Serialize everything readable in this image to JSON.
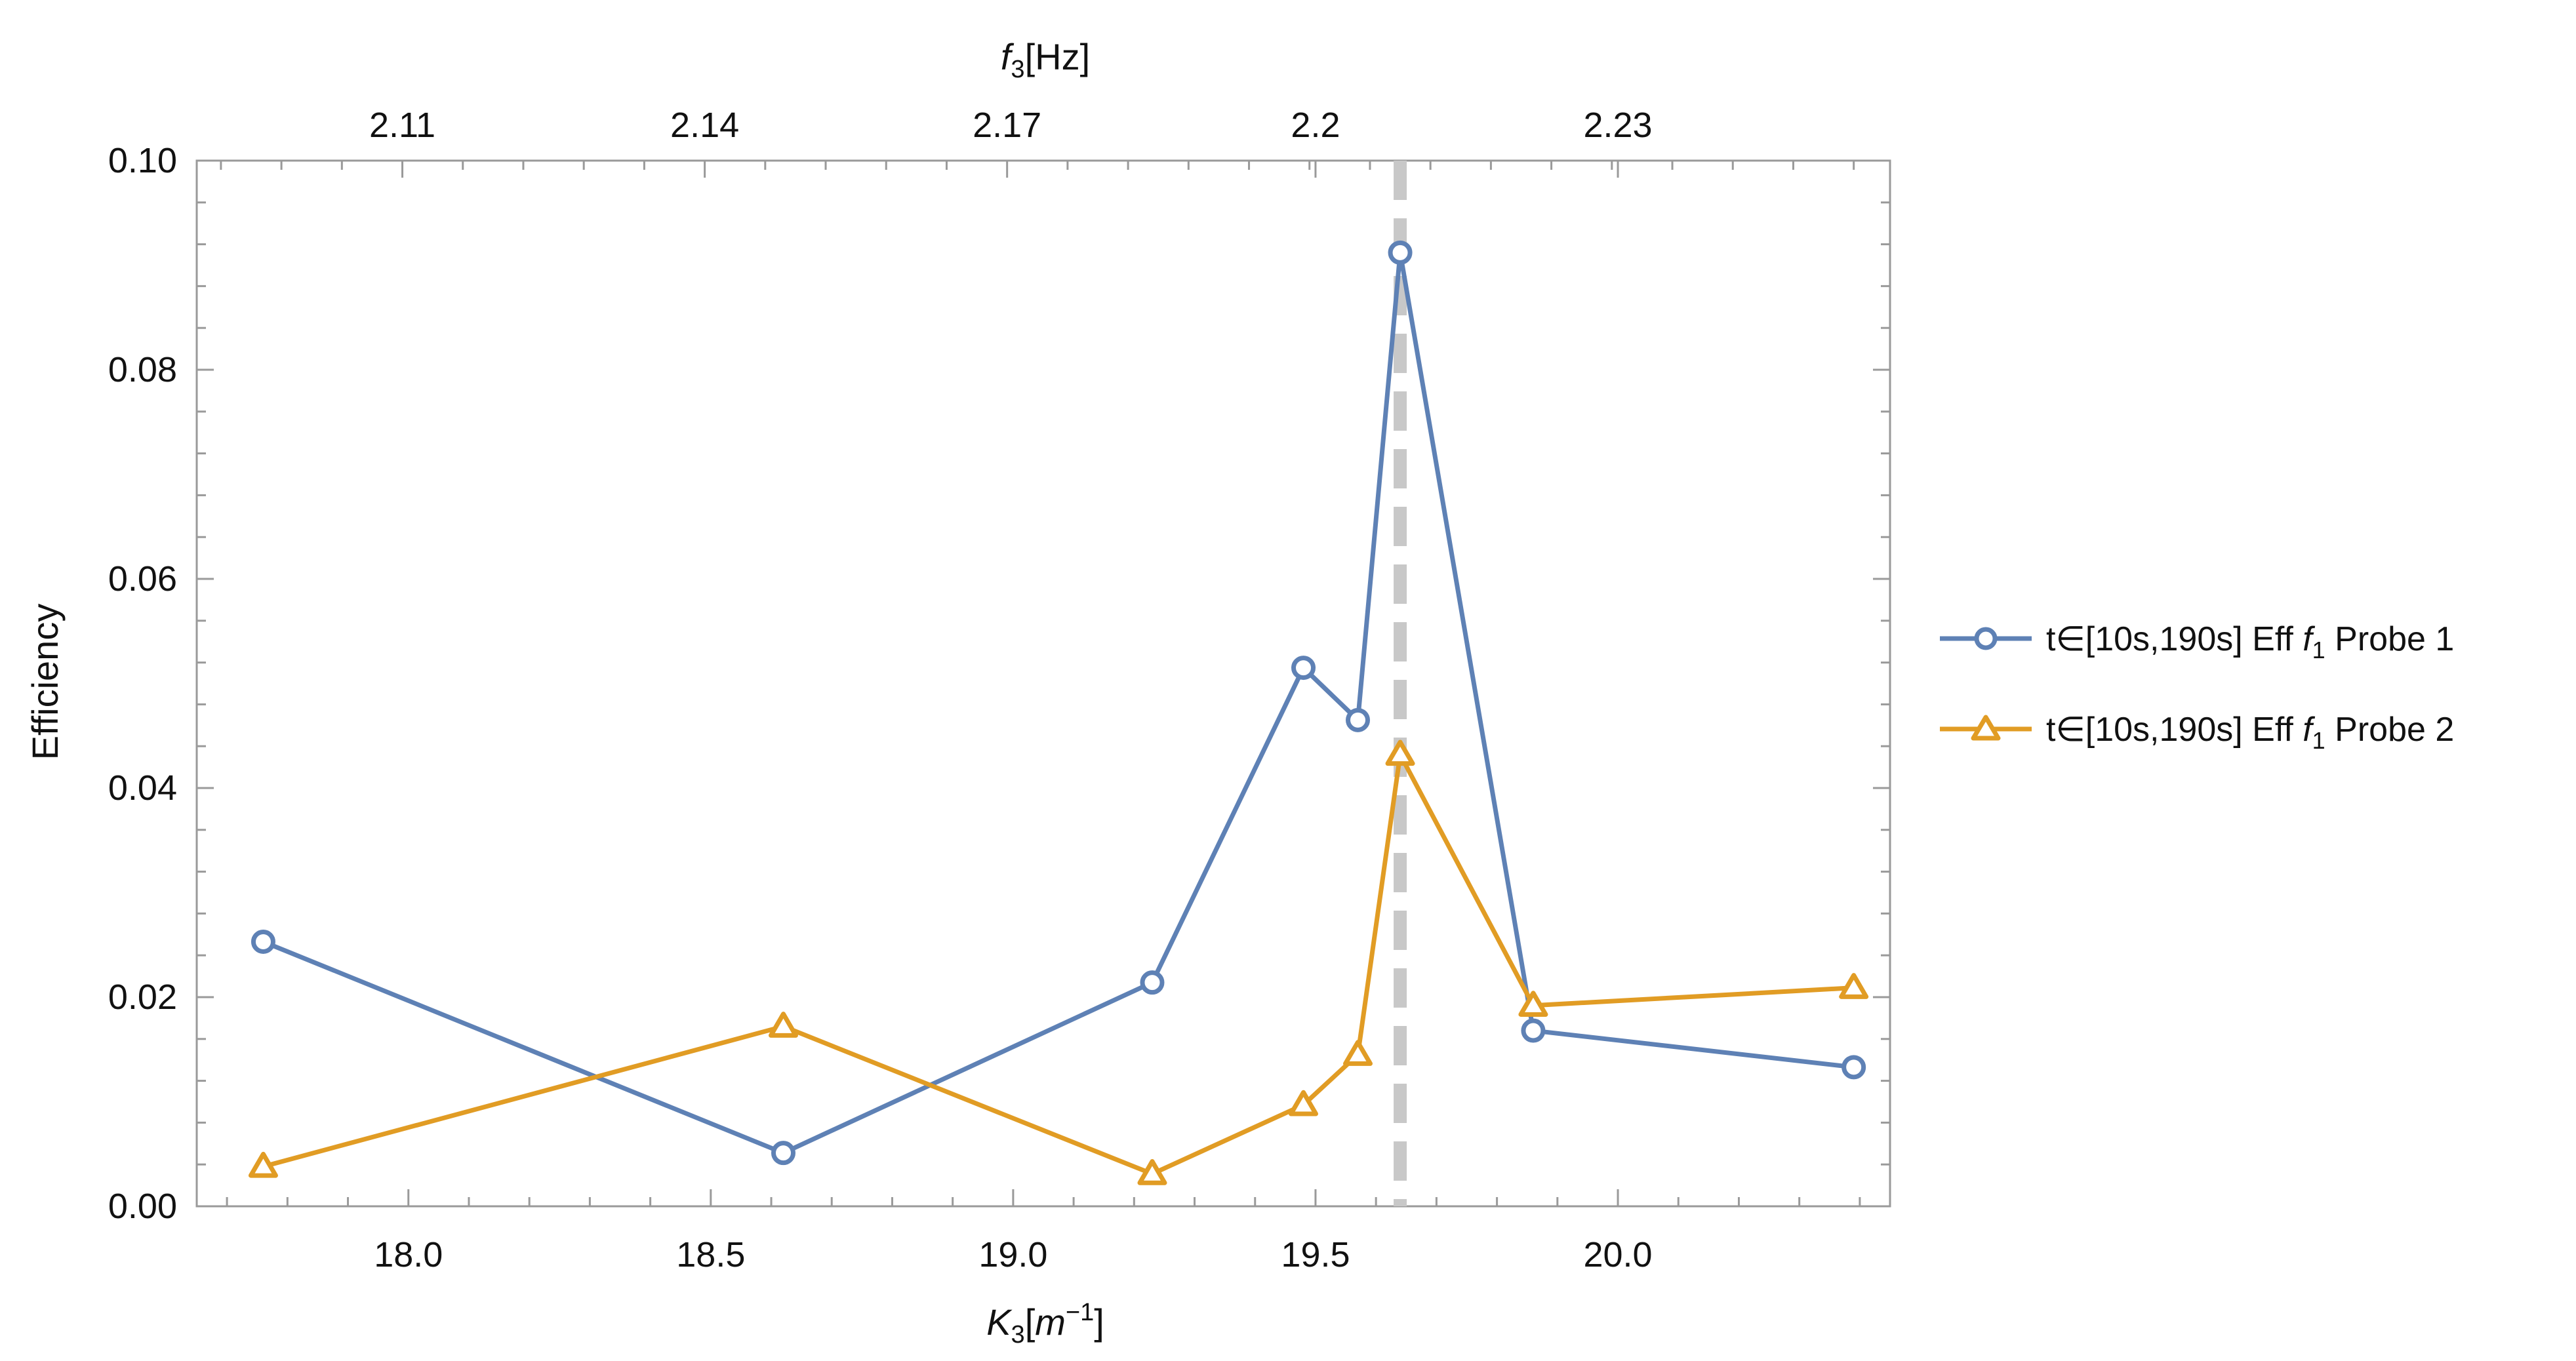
{
  "chart_data": {
    "type": "line",
    "title": "",
    "xlabel": {
      "main": "K",
      "sub": "3",
      "open": "[",
      "unit": "m",
      "sup": "−1",
      "close": "]"
    },
    "ylabel": "Efficiency",
    "top_xlabel": {
      "main": "f",
      "sub": "3",
      "unit": "[Hz]"
    },
    "xlim": [
      17.65,
      20.45
    ],
    "ylim": [
      0.0,
      0.1
    ],
    "x_ticks": [
      {
        "value": 18.0,
        "label": "18.0"
      },
      {
        "value": 18.5,
        "label": "18.5"
      },
      {
        "value": 19.0,
        "label": "19.0"
      },
      {
        "value": 19.5,
        "label": "19.5"
      },
      {
        "value": 20.0,
        "label": "20.0"
      }
    ],
    "y_ticks": [
      {
        "value": 0.0,
        "label": "0.00"
      },
      {
        "value": 0.02,
        "label": "0.02"
      },
      {
        "value": 0.04,
        "label": "0.04"
      },
      {
        "value": 0.06,
        "label": "0.06"
      },
      {
        "value": 0.08,
        "label": "0.08"
      },
      {
        "value": 0.1,
        "label": "0.10"
      }
    ],
    "top_ticks": [
      {
        "value": 17.99,
        "label": "2.11"
      },
      {
        "value": 18.49,
        "label": "2.14"
      },
      {
        "value": 18.99,
        "label": "2.17"
      },
      {
        "value": 19.5,
        "label": "2.2"
      },
      {
        "value": 20.0,
        "label": "2.23"
      }
    ],
    "vline": {
      "x": 19.64,
      "color": "#c8c8c8",
      "style": "dashed"
    },
    "series": [
      {
        "name": "t∈[10s,190s] Eff f1 Probe 1",
        "legend": {
          "prefix": "t∈[10s,190s] Eff ",
          "f": "f",
          "sub": "1",
          "suffix": " Probe 1"
        },
        "marker": "circle",
        "color": "#5e81b5",
        "x": [
          17.76,
          18.62,
          19.23,
          19.48,
          19.57,
          19.64,
          19.86,
          20.39
        ],
        "y": [
          0.0253,
          0.0051,
          0.0214,
          0.0515,
          0.0465,
          0.0912,
          0.0168,
          0.0133
        ]
      },
      {
        "name": "t∈[10s,190s] Eff f1 Probe 2",
        "legend": {
          "prefix": "t∈[10s,190s] Eff ",
          "f": "f",
          "sub": "1",
          "suffix": " Probe 2"
        },
        "marker": "triangle",
        "color": "#e19c24",
        "x": [
          17.76,
          18.62,
          19.23,
          19.48,
          19.57,
          19.64,
          19.86,
          20.39
        ],
        "y": [
          0.0038,
          0.0172,
          0.0031,
          0.0097,
          0.0145,
          0.0432,
          0.0192,
          0.0209
        ]
      }
    ]
  }
}
